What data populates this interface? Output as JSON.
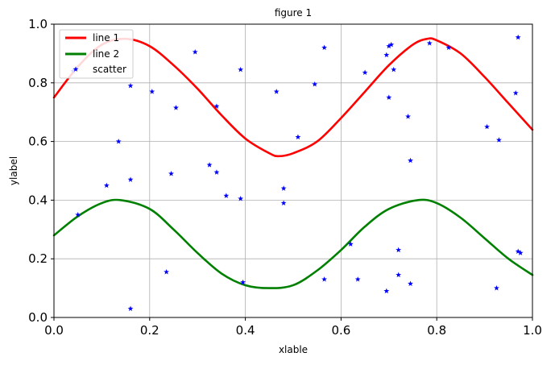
{
  "chart_data": {
    "type": "line",
    "title": "figure 1",
    "xlabel": "xlable",
    "ylabel": "ylabel",
    "xlim": [
      0.0,
      1.0
    ],
    "ylim": [
      0.0,
      1.0
    ],
    "grid": true,
    "legend_position": "top-left",
    "x_ticks": [
      "0.0",
      "0.2",
      "0.4",
      "0.6",
      "0.8",
      "1.0"
    ],
    "y_ticks": [
      "0.0",
      "0.2",
      "0.4",
      "0.6",
      "0.8",
      "1.0"
    ],
    "series": [
      {
        "name": "line 1",
        "type": "line",
        "color": "#ff0000",
        "x": [
          0.0,
          0.05,
          0.1,
          0.15,
          0.2,
          0.25,
          0.3,
          0.35,
          0.4,
          0.45,
          0.47,
          0.5,
          0.55,
          0.6,
          0.65,
          0.7,
          0.75,
          0.78,
          0.8,
          0.85,
          0.9,
          0.95,
          1.0
        ],
        "y": [
          0.75,
          0.855,
          0.93,
          0.95,
          0.925,
          0.86,
          0.78,
          0.69,
          0.61,
          0.56,
          0.55,
          0.56,
          0.6,
          0.68,
          0.77,
          0.86,
          0.93,
          0.95,
          0.945,
          0.9,
          0.82,
          0.73,
          0.64
        ]
      },
      {
        "name": "line 2",
        "type": "line",
        "color": "#008000",
        "x": [
          0.0,
          0.05,
          0.1,
          0.14,
          0.2,
          0.25,
          0.3,
          0.35,
          0.4,
          0.45,
          0.5,
          0.55,
          0.6,
          0.65,
          0.7,
          0.76,
          0.8,
          0.85,
          0.9,
          0.95,
          1.0
        ],
        "y": [
          0.28,
          0.345,
          0.39,
          0.4,
          0.37,
          0.3,
          0.22,
          0.15,
          0.11,
          0.1,
          0.11,
          0.16,
          0.23,
          0.31,
          0.37,
          0.4,
          0.39,
          0.34,
          0.27,
          0.2,
          0.145
        ]
      },
      {
        "name": "scatter",
        "type": "scatter",
        "color": "#0000ff",
        "marker": "star",
        "points": [
          [
            0.04,
            0.84
          ],
          [
            0.05,
            0.35
          ],
          [
            0.11,
            0.45
          ],
          [
            0.135,
            0.6
          ],
          [
            0.16,
            0.47
          ],
          [
            0.16,
            0.79
          ],
          [
            0.16,
            0.03
          ],
          [
            0.205,
            0.77
          ],
          [
            0.235,
            0.155
          ],
          [
            0.245,
            0.49
          ],
          [
            0.255,
            0.715
          ],
          [
            0.295,
            0.905
          ],
          [
            0.325,
            0.52
          ],
          [
            0.34,
            0.495
          ],
          [
            0.34,
            0.72
          ],
          [
            0.36,
            0.415
          ],
          [
            0.39,
            0.845
          ],
          [
            0.39,
            0.405
          ],
          [
            0.395,
            0.12
          ],
          [
            0.465,
            0.77
          ],
          [
            0.48,
            0.44
          ],
          [
            0.48,
            0.39
          ],
          [
            0.51,
            0.615
          ],
          [
            0.545,
            0.795
          ],
          [
            0.565,
            0.92
          ],
          [
            0.565,
            0.13
          ],
          [
            0.62,
            0.25
          ],
          [
            0.635,
            0.13
          ],
          [
            0.65,
            0.835
          ],
          [
            0.695,
            0.895
          ],
          [
            0.695,
            0.09
          ],
          [
            0.7,
            0.925
          ],
          [
            0.7,
            0.75
          ],
          [
            0.705,
            0.93
          ],
          [
            0.71,
            0.845
          ],
          [
            0.72,
            0.23
          ],
          [
            0.72,
            0.145
          ],
          [
            0.74,
            0.685
          ],
          [
            0.745,
            0.115
          ],
          [
            0.745,
            0.535
          ],
          [
            0.785,
            0.935
          ],
          [
            0.825,
            0.92
          ],
          [
            0.905,
            0.65
          ],
          [
            0.925,
            0.1
          ],
          [
            0.93,
            0.605
          ],
          [
            0.965,
            0.765
          ],
          [
            0.97,
            0.225
          ],
          [
            0.97,
            0.955
          ],
          [
            0.975,
            0.22
          ]
        ]
      }
    ]
  }
}
